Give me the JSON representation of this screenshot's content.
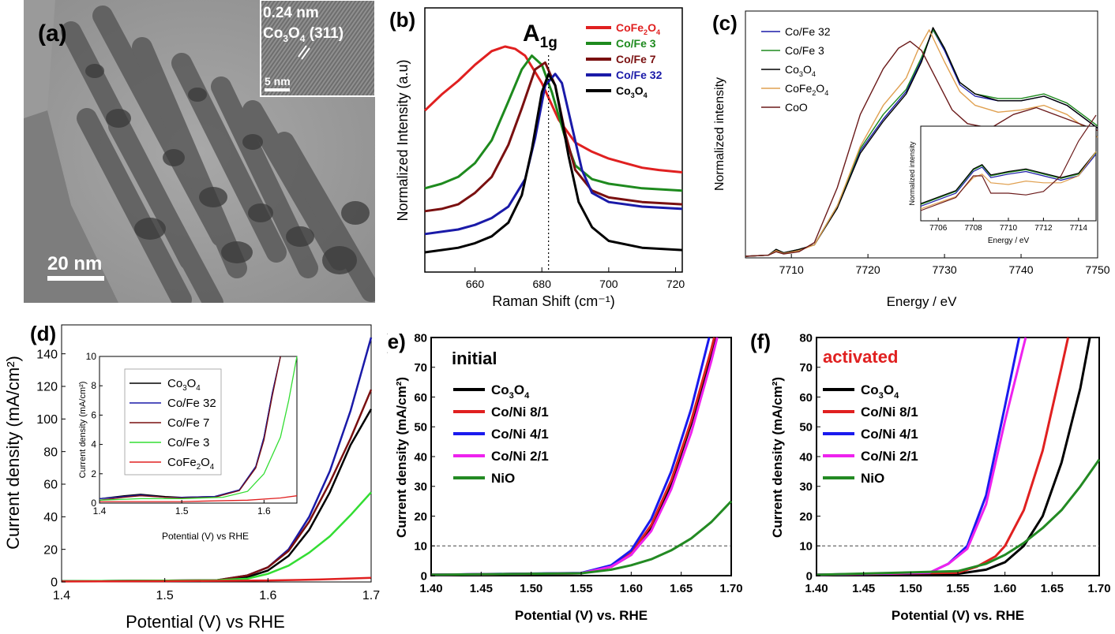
{
  "colors": {
    "co3o4": "#000000",
    "cofe32": "#1a1aa8",
    "cofe7": "#7a1010",
    "cofe3": "#1e8a1e",
    "cofe2o4": "#e02020",
    "coo": "#6b1a1a",
    "cofe2o4_xas": "#e0a050",
    "cofe3_light": "#33dd33",
    "coni8": "#e02020",
    "coni4": "#1a1aee",
    "coni2": "#ee22ee",
    "nio": "#238a23"
  },
  "panel_a": {
    "label": "(a)",
    "scale_bar": "20 nm",
    "inset_spacing": "0.24 nm",
    "inset_plane_main": "Co",
    "inset_plane_sub1": "3",
    "inset_plane_mid": "O",
    "inset_plane_sub2": "4",
    "inset_plane_hkl": " (311)",
    "inset_scale": "5 nm"
  },
  "chart_data": [
    {
      "panel": "(b)",
      "type": "line",
      "xlabel": "Raman Shift (cm⁻¹)",
      "ylabel": "Normalized Intensity (a.u)",
      "xlim": [
        645,
        722
      ],
      "xticks": [
        "660",
        "680",
        "700",
        "720"
      ],
      "annotation_main": "A",
      "annotation_sub": "1g",
      "marker_x": 682,
      "series": [
        {
          "name": "CoFe2O4",
          "label_main": "CoFe",
          "label_sub": "2",
          "label_mid": "O",
          "label_sub2": "4",
          "color": "#e02020",
          "x": [
            645,
            650,
            655,
            660,
            665,
            669,
            672,
            675,
            680,
            685,
            690,
            695,
            700,
            705,
            710,
            715,
            722
          ],
          "y": [
            0.62,
            0.69,
            0.75,
            0.82,
            0.88,
            0.9,
            0.89,
            0.86,
            0.74,
            0.58,
            0.48,
            0.44,
            0.41,
            0.39,
            0.37,
            0.36,
            0.35
          ]
        },
        {
          "name": "Co/Fe 3",
          "color": "#1e8a1e",
          "x": [
            645,
            650,
            655,
            660,
            665,
            670,
            674,
            677,
            680,
            683,
            687,
            690,
            695,
            700,
            710,
            722
          ],
          "y": [
            0.28,
            0.3,
            0.33,
            0.39,
            0.49,
            0.66,
            0.8,
            0.86,
            0.82,
            0.7,
            0.5,
            0.38,
            0.32,
            0.3,
            0.28,
            0.27
          ]
        },
        {
          "name": "Co/Fe 7",
          "color": "#7a1010",
          "x": [
            645,
            650,
            655,
            660,
            665,
            670,
            674,
            678,
            681,
            684,
            687,
            690,
            695,
            700,
            710,
            722
          ],
          "y": [
            0.18,
            0.19,
            0.21,
            0.26,
            0.33,
            0.47,
            0.63,
            0.8,
            0.83,
            0.73,
            0.52,
            0.36,
            0.27,
            0.24,
            0.22,
            0.21
          ]
        },
        {
          "name": "Co/Fe 32",
          "color": "#1a1aa8",
          "x": [
            645,
            650,
            655,
            660,
            665,
            670,
            675,
            678,
            681,
            684,
            686,
            689,
            692,
            695,
            700,
            710,
            722
          ],
          "y": [
            0.08,
            0.09,
            0.1,
            0.12,
            0.15,
            0.2,
            0.32,
            0.5,
            0.73,
            0.78,
            0.74,
            0.55,
            0.36,
            0.26,
            0.22,
            0.2,
            0.19
          ]
        },
        {
          "name": "Co3O4",
          "label_main": "Co",
          "label_sub": "3",
          "label_mid": "O",
          "label_sub2": "4",
          "color": "#000000",
          "x": [
            645,
            650,
            655,
            660,
            665,
            670,
            674,
            677,
            680,
            682,
            684,
            686,
            688,
            691,
            695,
            700,
            710,
            722
          ],
          "y": [
            0.0,
            0.01,
            0.02,
            0.04,
            0.07,
            0.13,
            0.25,
            0.45,
            0.7,
            0.78,
            0.73,
            0.58,
            0.42,
            0.22,
            0.11,
            0.05,
            0.02,
            0.01
          ]
        }
      ]
    },
    {
      "panel": "(c)",
      "type": "line",
      "xlabel": "Energy / eV",
      "ylabel": "Normalized intensity",
      "xlim": [
        7704,
        7750
      ],
      "xticks": [
        "7710",
        "7720",
        "7730",
        "7740",
        "7750"
      ],
      "series": [
        {
          "name": "Co/Fe 32",
          "color": "#1a1aa8",
          "x": [
            7704,
            7707,
            7708,
            7709,
            7711,
            7713,
            7716,
            7719,
            7722,
            7725,
            7727,
            7728.5,
            7730,
            7732,
            7734,
            7737,
            7740,
            7743,
            7746,
            7750
          ],
          "y": [
            0,
            0.005,
            0.03,
            0.015,
            0.03,
            0.05,
            0.22,
            0.46,
            0.6,
            0.72,
            0.86,
            0.99,
            0.9,
            0.75,
            0.7,
            0.68,
            0.68,
            0.7,
            0.66,
            0.56
          ]
        },
        {
          "name": "Co/Fe 3",
          "color": "#1e8a1e",
          "x": [
            7704,
            7707,
            7708,
            7709,
            7711,
            7713,
            7716,
            7719,
            7722,
            7725,
            7727,
            7728.5,
            7730,
            7732,
            7734,
            7737,
            7740,
            7743,
            7746,
            7750
          ],
          "y": [
            0,
            0.005,
            0.03,
            0.015,
            0.03,
            0.05,
            0.22,
            0.47,
            0.62,
            0.73,
            0.87,
            0.99,
            0.91,
            0.76,
            0.71,
            0.69,
            0.69,
            0.71,
            0.67,
            0.57
          ]
        },
        {
          "name": "Co3O4",
          "label_main": "Co",
          "label_sub": "3",
          "label_mid": "O",
          "label_sub2": "4",
          "color": "#000000",
          "x": [
            7704,
            7707,
            7708,
            7709,
            7711,
            7713,
            7716,
            7719,
            7722,
            7725,
            7727,
            7728.5,
            7730,
            7732,
            7734,
            7737,
            7740,
            7743,
            7746,
            7750
          ],
          "y": [
            0,
            0.005,
            0.03,
            0.015,
            0.03,
            0.05,
            0.21,
            0.45,
            0.59,
            0.71,
            0.85,
            1.0,
            0.91,
            0.76,
            0.71,
            0.68,
            0.68,
            0.7,
            0.66,
            0.56
          ]
        },
        {
          "name": "CoFe2O4",
          "label_main": "CoFe",
          "label_sub": "2",
          "label_mid": "O",
          "label_sub2": "4",
          "color": "#e0a050",
          "x": [
            7704,
            7707,
            7708,
            7709,
            7711,
            7713,
            7716,
            7719,
            7722,
            7725,
            7726.5,
            7728,
            7730,
            7732,
            7734,
            7737,
            7740,
            7743,
            7746,
            7750
          ],
          "y": [
            0,
            0.005,
            0.025,
            0.012,
            0.025,
            0.05,
            0.22,
            0.48,
            0.66,
            0.78,
            0.9,
            0.99,
            0.85,
            0.72,
            0.66,
            0.63,
            0.64,
            0.66,
            0.62,
            0.52
          ]
        },
        {
          "name": "CoO",
          "color": "#6b1a1a",
          "x": [
            7704,
            7707,
            7708,
            7709,
            7711,
            7713,
            7716,
            7719,
            7722,
            7724,
            7725.5,
            7727,
            7729,
            7731,
            7733,
            7736,
            7739,
            7742,
            7746,
            7750
          ],
          "y": [
            0,
            0.005,
            0.02,
            0.01,
            0.02,
            0.06,
            0.3,
            0.62,
            0.82,
            0.91,
            0.94,
            0.9,
            0.77,
            0.64,
            0.58,
            0.56,
            0.62,
            0.65,
            0.6,
            0.55
          ]
        }
      ],
      "inset": {
        "xlabel": "Energy / eV",
        "ylabel": "Normalized intensity",
        "xlim": [
          7705,
          7715
        ],
        "xticks": [
          "7706",
          "7708",
          "7710",
          "7712",
          "7714"
        ]
      }
    },
    {
      "panel": "(d)",
      "type": "line",
      "xlabel": "Potential (V) vs RHE",
      "ylabel": "Current density (mA/cm²)",
      "xlim": [
        1.4,
        1.7
      ],
      "ylim": [
        0,
        150
      ],
      "xticks": [
        "1.4",
        "1.5",
        "1.6",
        "1.7"
      ],
      "yticks": [
        "0",
        "20",
        "40",
        "60",
        "80",
        "100",
        "120",
        "140"
      ],
      "series": [
        {
          "name": "Co3O4",
          "label_main": "Co",
          "label_sub": "3",
          "label_mid": "O",
          "label_sub2": "4",
          "color": "#000000",
          "x": [
            1.4,
            1.55,
            1.58,
            1.6,
            1.62,
            1.64,
            1.66,
            1.68,
            1.7
          ],
          "y": [
            0.5,
            1,
            3,
            7,
            16,
            32,
            55,
            84,
            106
          ]
        },
        {
          "name": "Co/Fe 32",
          "color": "#1a1aa8",
          "x": [
            1.4,
            1.55,
            1.58,
            1.6,
            1.62,
            1.64,
            1.66,
            1.68,
            1.7
          ],
          "y": [
            0.5,
            1,
            4,
            9,
            20,
            40,
            68,
            105,
            150
          ]
        },
        {
          "name": "Co/Fe 7",
          "color": "#7a1010",
          "x": [
            1.4,
            1.55,
            1.58,
            1.6,
            1.62,
            1.64,
            1.66,
            1.68,
            1.7
          ],
          "y": [
            0.5,
            1,
            4,
            9,
            19,
            37,
            61,
            88,
            118
          ]
        },
        {
          "name": "Co/Fe 3",
          "color": "#33dd33",
          "x": [
            1.4,
            1.55,
            1.58,
            1.6,
            1.62,
            1.64,
            1.66,
            1.68,
            1.7
          ],
          "y": [
            0.5,
            1,
            2,
            5,
            10,
            18,
            28,
            41,
            55
          ]
        },
        {
          "name": "CoFe2O4",
          "label_main": "CoFe",
          "label_sub": "2",
          "label_mid": "O",
          "label_sub2": "4",
          "color": "#e02020",
          "x": [
            1.4,
            1.5,
            1.6,
            1.65,
            1.7
          ],
          "y": [
            0.3,
            0.5,
            0.9,
            1.5,
            2.5
          ]
        }
      ],
      "inset": {
        "xlabel": "Potential (V) vs RHE",
        "ylabel": "Current density (mA/cm²)",
        "xlim": [
          1.4,
          1.64
        ],
        "ylim": [
          0,
          10
        ],
        "xticks": [
          "1.4",
          "1.5",
          "1.6"
        ],
        "yticks": [
          "0",
          "2",
          "4",
          "6",
          "8",
          "10"
        ]
      }
    },
    {
      "panel": "(e)",
      "type": "line",
      "title": "initial",
      "xlabel": "Potential (V) vs. RHE",
      "ylabel": "Current density (mA/cm²)",
      "xlim": [
        1.4,
        1.7
      ],
      "ylim": [
        0,
        80
      ],
      "xticks": [
        "1.40",
        "1.45",
        "1.50",
        "1.55",
        "1.60",
        "1.65",
        "1.70"
      ],
      "yticks": [
        "0",
        "10",
        "20",
        "30",
        "40",
        "50",
        "60",
        "70",
        "80"
      ],
      "ref_line": 10,
      "series": [
        {
          "name": "Co3O4",
          "label_main": "Co",
          "label_sub": "3",
          "label_mid": "O",
          "label_sub2": "4",
          "color": "#000000",
          "x": [
            1.4,
            1.55,
            1.58,
            1.6,
            1.62,
            1.64,
            1.66,
            1.68,
            1.685
          ],
          "y": [
            0.3,
            0.8,
            3,
            7,
            16,
            31,
            51,
            74,
            80
          ]
        },
        {
          "name": "Co/Ni 8/1",
          "color": "#e02020",
          "x": [
            1.4,
            1.55,
            1.58,
            1.6,
            1.62,
            1.64,
            1.66,
            1.68,
            1.683
          ],
          "y": [
            0.3,
            0.8,
            3,
            7.5,
            17,
            32,
            52,
            76,
            80
          ]
        },
        {
          "name": "Co/Ni 4/1",
          "color": "#1a1aee",
          "x": [
            1.4,
            1.55,
            1.58,
            1.6,
            1.62,
            1.64,
            1.66,
            1.678
          ],
          "y": [
            0.3,
            0.9,
            3.5,
            8.5,
            19,
            35,
            56,
            80
          ]
        },
        {
          "name": "Co/Ni 2/1",
          "color": "#ee22ee",
          "x": [
            1.4,
            1.55,
            1.58,
            1.6,
            1.62,
            1.64,
            1.66,
            1.68,
            1.686
          ],
          "y": [
            0.3,
            0.8,
            3,
            7,
            15,
            29,
            48,
            72,
            80
          ]
        },
        {
          "name": "NiO",
          "color": "#238a23",
          "x": [
            1.4,
            1.55,
            1.58,
            1.6,
            1.62,
            1.64,
            1.66,
            1.68,
            1.7
          ],
          "y": [
            0.3,
            0.8,
            2,
            3.5,
            5.5,
            8.5,
            12.5,
            18,
            25
          ]
        }
      ]
    },
    {
      "panel": "(f)",
      "type": "line",
      "title": "activated",
      "xlabel": "Potential (V) vs. RHE",
      "ylabel": "Current density (mA/cm²)",
      "xlim": [
        1.4,
        1.7
      ],
      "ylim": [
        0,
        80
      ],
      "xticks": [
        "1.40",
        "1.45",
        "1.50",
        "1.55",
        "1.60",
        "1.65",
        "1.70"
      ],
      "yticks": [
        "0",
        "10",
        "20",
        "30",
        "40",
        "50",
        "60",
        "70",
        "80"
      ],
      "ref_line": 10,
      "series": [
        {
          "name": "Co3O4",
          "label_main": "Co",
          "label_sub": "3",
          "label_mid": "O",
          "label_sub2": "4",
          "color": "#000000",
          "x": [
            1.4,
            1.55,
            1.58,
            1.6,
            1.62,
            1.64,
            1.66,
            1.68,
            1.69
          ],
          "y": [
            0.3,
            0.6,
            2,
            4.5,
            10,
            20,
            38,
            63,
            80
          ]
        },
        {
          "name": "Co/Ni 8/1",
          "color": "#e02020",
          "x": [
            1.4,
            1.55,
            1.57,
            1.59,
            1.6,
            1.62,
            1.64,
            1.66,
            1.667
          ],
          "y": [
            0.3,
            1,
            3,
            6.5,
            10,
            22,
            42,
            70,
            80
          ]
        },
        {
          "name": "Co/Ni 4/1",
          "color": "#1a1aee",
          "x": [
            1.4,
            1.52,
            1.54,
            1.56,
            1.58,
            1.6,
            1.615
          ],
          "y": [
            0.3,
            1,
            4,
            10,
            27,
            57,
            80
          ]
        },
        {
          "name": "Co/Ni 2/1",
          "color": "#ee22ee",
          "x": [
            1.4,
            1.52,
            1.54,
            1.56,
            1.58,
            1.6,
            1.622
          ],
          "y": [
            0.3,
            1,
            4,
            9,
            24,
            52,
            80
          ]
        },
        {
          "name": "NiO",
          "color": "#238a23",
          "x": [
            1.4,
            1.55,
            1.58,
            1.6,
            1.62,
            1.64,
            1.66,
            1.68,
            1.7
          ],
          "y": [
            0.3,
            1.5,
            4,
            7,
            11,
            16,
            22,
            30,
            39
          ]
        }
      ]
    }
  ]
}
